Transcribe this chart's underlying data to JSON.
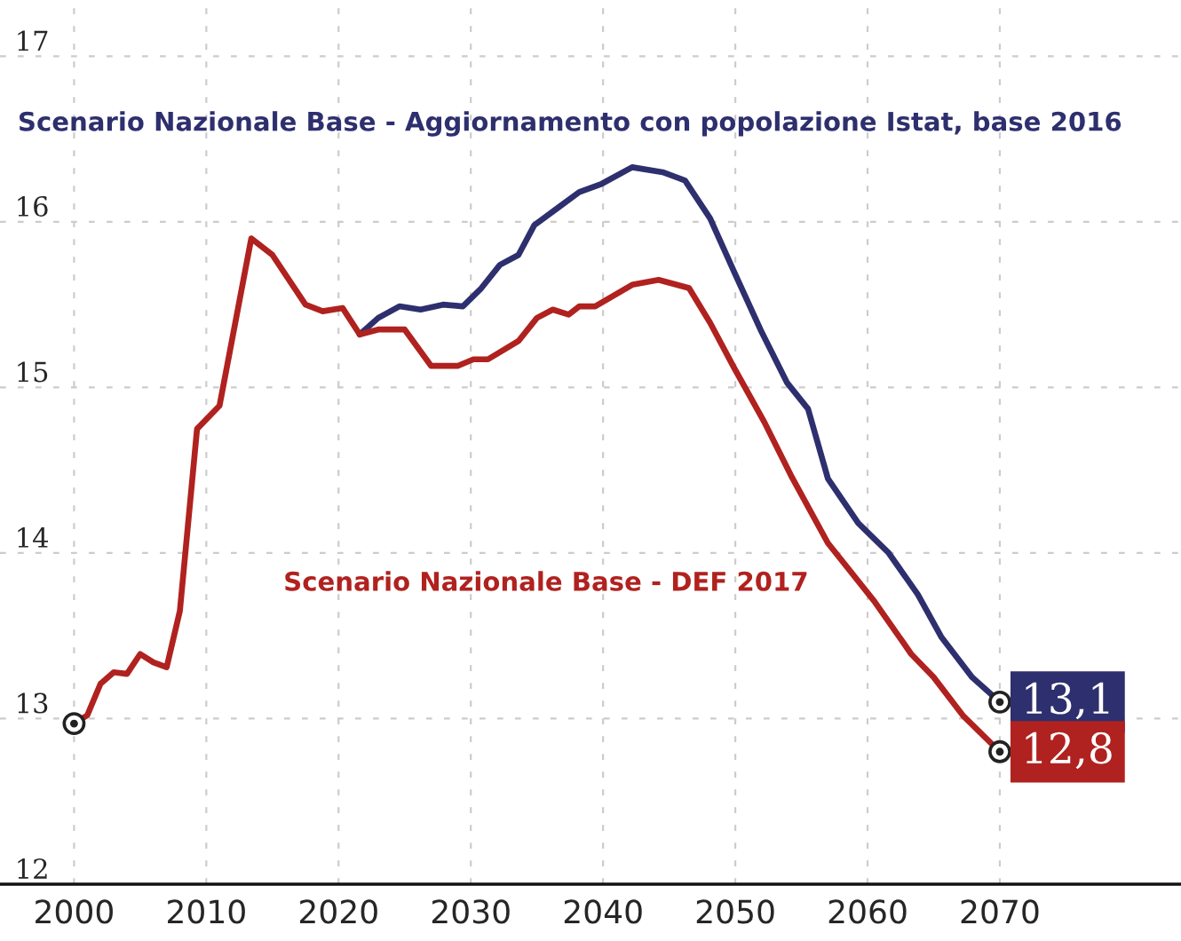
{
  "chart_data": {
    "type": "line",
    "xlim": [
      1994.4,
      2083.7
    ],
    "ylim": [
      12,
      17.34
    ],
    "xticks": [
      2000,
      2010,
      2020,
      2030,
      2040,
      2050,
      2060,
      2070
    ],
    "yticks": [
      12,
      13,
      14,
      15,
      16,
      17
    ],
    "grid": true,
    "line_style": "solid",
    "series": [
      {
        "name": "Scenario Nazionale Base - Aggiornamento con popolazione Istat, base 2016",
        "color": "#2e2f6e",
        "x": [
          2021.6,
          2023,
          2024.6,
          2026.2,
          2027.9,
          2029.4,
          2030.8,
          2032.2,
          2033.6,
          2034.8,
          2036.5,
          2038.2,
          2039.9,
          2042.2,
          2044.5,
          2046.2,
          2048.1,
          2049.9,
          2051.9,
          2053.9,
          2055.5,
          2057,
          2059.3,
          2061.6,
          2063.8,
          2065.6,
          2067.9,
          2070
        ],
        "values": [
          15.32,
          15.42,
          15.49,
          15.47,
          15.5,
          15.49,
          15.6,
          15.74,
          15.8,
          15.98,
          16.08,
          16.18,
          16.23,
          16.33,
          16.3,
          16.25,
          16.02,
          15.7,
          15.35,
          15.03,
          14.87,
          14.45,
          14.18,
          14.0,
          13.75,
          13.49,
          13.25,
          13.1
        ],
        "value_labels": [
          null,
          null,
          null,
          null,
          null,
          null,
          null,
          null,
          null,
          null,
          null,
          null,
          null,
          null,
          null,
          null,
          null,
          null,
          null,
          null,
          null,
          null,
          null,
          null,
          null,
          null,
          null,
          "13,1"
        ]
      },
      {
        "name": "Scenario Nazionale Base - DEF 2017",
        "color": "#b0221f",
        "x": [
          2000,
          2001,
          2002,
          2003,
          2004,
          2005,
          2006,
          2007,
          2008,
          2009.3,
          2011,
          2013.4,
          2015,
          2017.5,
          2018.8,
          2020.3,
          2021.6,
          2023,
          2025,
          2027,
          2029,
          2030.2,
          2031.3,
          2033.6,
          2035,
          2036.2,
          2037.4,
          2038.2,
          2039.4,
          2042.2,
          2044.2,
          2046.5,
          2048.1,
          2049.9,
          2052.2,
          2054.2,
          2057,
          2060.5,
          2063.3,
          2065,
          2067.2,
          2070
        ],
        "values": [
          12.97,
          13.02,
          13.21,
          13.28,
          13.27,
          13.39,
          13.34,
          13.31,
          13.65,
          14.75,
          14.89,
          15.9,
          15.8,
          15.5,
          15.46,
          15.48,
          15.32,
          15.35,
          15.35,
          15.13,
          15.13,
          15.17,
          15.17,
          15.28,
          15.42,
          15.47,
          15.44,
          15.49,
          15.49,
          15.62,
          15.65,
          15.6,
          15.39,
          15.12,
          14.79,
          14.47,
          14.06,
          13.71,
          13.39,
          13.25,
          13.02,
          12.8
        ],
        "value_labels": [
          null,
          null,
          null,
          null,
          null,
          null,
          null,
          null,
          null,
          null,
          null,
          null,
          null,
          null,
          null,
          null,
          null,
          null,
          null,
          null,
          null,
          null,
          null,
          null,
          null,
          null,
          null,
          null,
          null,
          null,
          null,
          null,
          null,
          null,
          null,
          null,
          null,
          null,
          null,
          null,
          null,
          "12,8"
        ]
      }
    ]
  }
}
